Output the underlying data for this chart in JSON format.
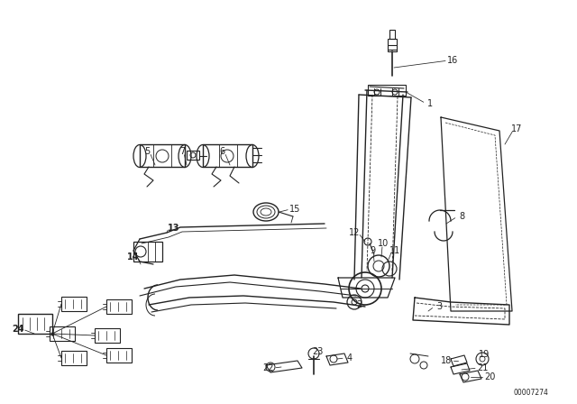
{
  "background_color": "#ffffff",
  "line_color": "#222222",
  "watermark": "00007274",
  "fig_width": 6.4,
  "fig_height": 4.48,
  "dpi": 100
}
